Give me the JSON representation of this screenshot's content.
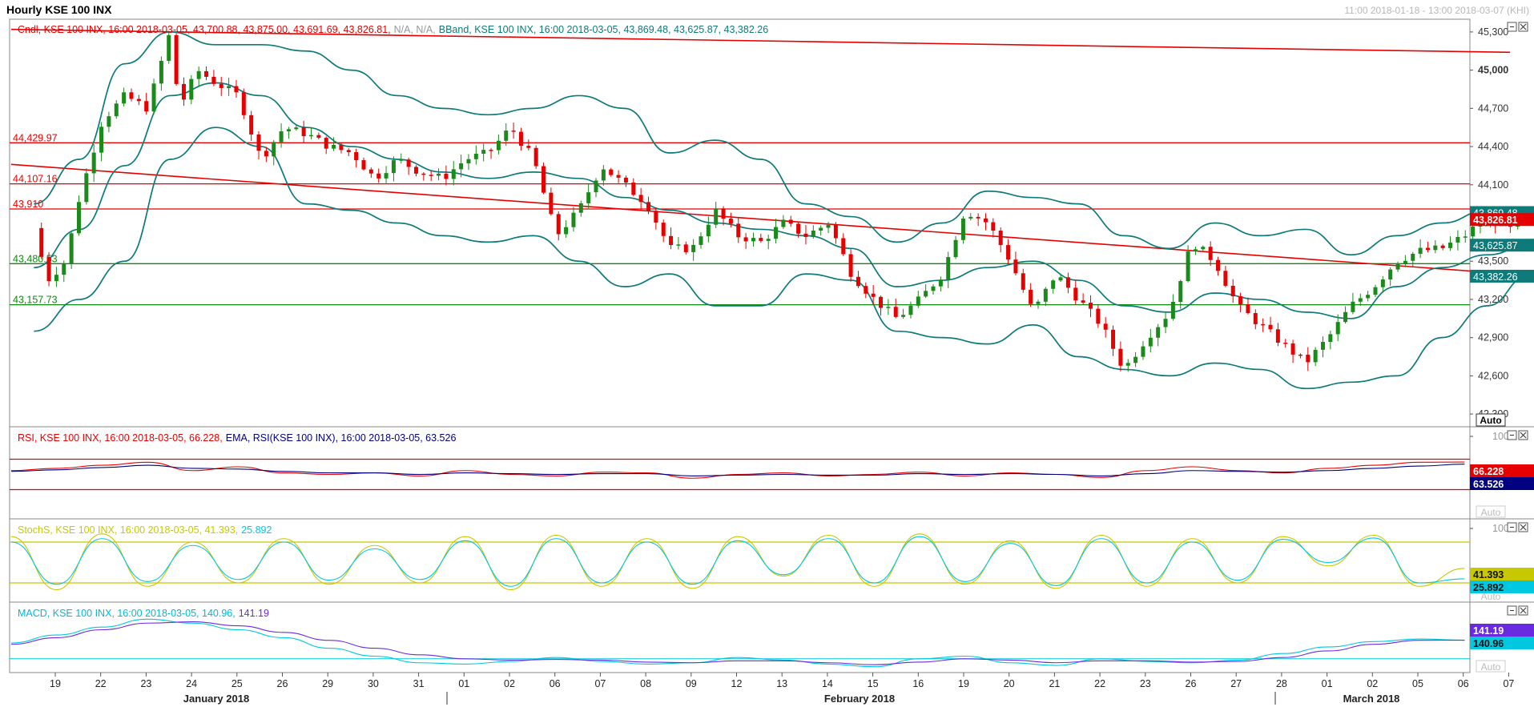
{
  "header": {
    "title": "Hourly KSE 100 INX",
    "range": "11:00 2018-01-18 - 13:00 2018-03-07 (KHI)"
  },
  "panels": {
    "price": {
      "legend_a": "Cndl, KSE 100 INX, 16:00 2018-03-05, 43,700.88, 43,875.00, 43,691.69, 43,826.81,",
      "legend_b": "N/A, N/A,",
      "legend_c": "BBand, KSE 100 INX, 16:00 2018-03-05, 43,869.48, 43,625.87, 43,382.26"
    },
    "rsi": {
      "legend_a": "RSI, KSE 100 INX, 16:00 2018-03-05, 66.228,",
      "legend_b": "EMA, RSI(KSE 100 INX), 16:00 2018-03-05, 63.526"
    },
    "stoch": {
      "legend_a": "StochS, KSE 100 INX, 16:00 2018-03-05, 41.393,",
      "legend_b": "25.892"
    },
    "macd": {
      "legend_a": "MACD, KSE 100 INX, 16:00 2018-03-05, 140.96,",
      "legend_b": "141.19"
    }
  },
  "auto_label": "Auto",
  "colors": {
    "up": "#1a8a1a",
    "down": "#e60000",
    "bband": "#0e7a7a",
    "hline_red": "#e60000",
    "hline_green": "#118811",
    "rsi": "#e60000",
    "rsi_ema": "#000080",
    "stoch_k": "#c8c800",
    "stoch_d": "#00c8e0",
    "macd": "#00c8e0",
    "macd_signal": "#6a2be0"
  },
  "chart_data": [
    {
      "type": "candlestick",
      "title": "Hourly KSE 100 INX",
      "ylim": [
        42200,
        45400
      ],
      "y_ticks": [
        "45,300",
        "45,000",
        "44,700",
        "44,400",
        "44,100",
        "43,800",
        "43,500",
        "43,200",
        "42,900",
        "42,600",
        "42,300"
      ],
      "y_ticks_bold": [
        "45,000"
      ],
      "x_days": [
        "19",
        "22",
        "23",
        "24",
        "25",
        "26",
        "29",
        "30",
        "31",
        "01",
        "02",
        "06",
        "07",
        "08",
        "09",
        "12",
        "13",
        "14",
        "15",
        "16",
        "19",
        "20",
        "21",
        "22",
        "23",
        "26",
        "27",
        "28",
        "01",
        "02",
        "05",
        "06",
        "07"
      ],
      "month_labels": [
        "January 2018",
        "February 2018",
        "March 2018"
      ],
      "horizontal_levels": [
        {
          "label": "44,429.97",
          "value": 44429.97,
          "color": "red"
        },
        {
          "label": "44,107.16",
          "value": 44107.16,
          "color": "red"
        },
        {
          "label": "43,910",
          "value": 43910,
          "color": "red"
        },
        {
          "label": "43,480.53",
          "value": 43480.53,
          "color": "green"
        },
        {
          "label": "43,157.73",
          "value": 43157.73,
          "color": "green"
        }
      ],
      "trendlines": [
        {
          "from": [
            0,
            44260
          ],
          "to": [
            33,
            43400
          ]
        },
        {
          "from": [
            0,
            45320
          ],
          "to": [
            33,
            45140
          ]
        }
      ],
      "value_tags": [
        {
          "text": "43,869.48",
          "value": 43869.48,
          "color": "teal"
        },
        {
          "text": "43,826.81",
          "value": 43826.81,
          "color": "red"
        },
        {
          "text": "43,625.87",
          "value": 43625.87,
          "color": "teal"
        },
        {
          "text": "43,382.26",
          "value": 43382.26,
          "color": "teal"
        }
      ],
      "close_path": [
        [
          0,
          43760
        ],
        [
          0.3,
          43350
        ],
        [
          0.7,
          43500
        ],
        [
          1.0,
          44000
        ],
        [
          1.5,
          44600
        ],
        [
          2.0,
          44800
        ],
        [
          2.5,
          44700
        ],
        [
          3.0,
          45300
        ],
        [
          3.2,
          44700
        ],
        [
          3.6,
          45000
        ],
        [
          4.0,
          44900
        ],
        [
          4.5,
          44800
        ],
        [
          5.0,
          44300
        ],
        [
          5.5,
          44550
        ],
        [
          6.0,
          44500
        ],
        [
          6.5,
          44400
        ],
        [
          7.0,
          44350
        ],
        [
          7.5,
          44150
        ],
        [
          8.0,
          44300
        ],
        [
          8.5,
          44200
        ],
        [
          9.0,
          44150
        ],
        [
          9.5,
          44300
        ],
        [
          10.0,
          44350
        ],
        [
          10.5,
          44550
        ],
        [
          11.0,
          44300
        ],
        [
          11.5,
          43700
        ],
        [
          12.0,
          43900
        ],
        [
          12.5,
          44250
        ],
        [
          13.0,
          44100
        ],
        [
          13.5,
          43950
        ],
        [
          14.0,
          43600
        ],
        [
          14.5,
          43600
        ],
        [
          15.0,
          43900
        ],
        [
          15.5,
          43700
        ],
        [
          16.0,
          43650
        ],
        [
          16.5,
          43800
        ],
        [
          17.0,
          43700
        ],
        [
          17.5,
          43800
        ],
        [
          18.0,
          43400
        ],
        [
          18.5,
          43200
        ],
        [
          19.0,
          43050
        ],
        [
          19.5,
          43200
        ],
        [
          20.0,
          43400
        ],
        [
          20.5,
          43900
        ],
        [
          21.0,
          43800
        ],
        [
          21.5,
          43500
        ],
        [
          22.0,
          43100
        ],
        [
          22.5,
          43400
        ],
        [
          23.0,
          43200
        ],
        [
          23.5,
          43000
        ],
        [
          24.0,
          42650
        ],
        [
          24.5,
          42900
        ],
        [
          25.0,
          43100
        ],
        [
          25.5,
          43650
        ],
        [
          26.0,
          43500
        ],
        [
          26.5,
          43150
        ],
        [
          27.0,
          43000
        ],
        [
          27.5,
          42850
        ],
        [
          28.0,
          42700
        ],
        [
          28.5,
          42900
        ],
        [
          29.0,
          43150
        ],
        [
          29.5,
          43300
        ],
        [
          30.0,
          43500
        ],
        [
          30.5,
          43580
        ],
        [
          31.0,
          43600
        ],
        [
          31.5,
          43700
        ],
        [
          32.0,
          43850
        ],
        [
          32.5,
          43750
        ],
        [
          32.9,
          43826
        ]
      ],
      "bband_upper": [
        [
          0,
          43950
        ],
        [
          1,
          44300
        ],
        [
          2,
          45050
        ],
        [
          3,
          45300
        ],
        [
          4,
          45200
        ],
        [
          5,
          45200
        ],
        [
          6,
          45150
        ],
        [
          7,
          45000
        ],
        [
          8,
          44800
        ],
        [
          9,
          44700
        ],
        [
          10,
          44650
        ],
        [
          11,
          44700
        ],
        [
          12,
          44800
        ],
        [
          13,
          44700
        ],
        [
          14,
          44350
        ],
        [
          15,
          44450
        ],
        [
          16,
          44300
        ],
        [
          17,
          43950
        ],
        [
          18,
          43850
        ],
        [
          19,
          43650
        ],
        [
          20,
          43800
        ],
        [
          21,
          44050
        ],
        [
          22,
          44000
        ],
        [
          23,
          43950
        ],
        [
          24,
          43700
        ],
        [
          25,
          43600
        ],
        [
          26,
          43800
        ],
        [
          27,
          43700
        ],
        [
          28,
          43750
        ],
        [
          29,
          43550
        ],
        [
          30,
          43700
        ],
        [
          31,
          43800
        ],
        [
          32,
          43900
        ],
        [
          32.9,
          43869
        ]
      ],
      "bband_mid": [
        [
          0,
          43450
        ],
        [
          1,
          43750
        ],
        [
          2,
          44250
        ],
        [
          3,
          44800
        ],
        [
          4,
          44900
        ],
        [
          5,
          44800
        ],
        [
          6,
          44550
        ],
        [
          7,
          44400
        ],
        [
          8,
          44300
        ],
        [
          9,
          44200
        ],
        [
          10,
          44150
        ],
        [
          11,
          44200
        ],
        [
          12,
          44150
        ],
        [
          13,
          44000
        ],
        [
          14,
          43900
        ],
        [
          15,
          43800
        ],
        [
          16,
          43750
        ],
        [
          17,
          43700
        ],
        [
          18,
          43600
        ],
        [
          19,
          43300
        ],
        [
          20,
          43350
        ],
        [
          21,
          43450
        ],
        [
          22,
          43500
        ],
        [
          23,
          43350
        ],
        [
          24,
          43150
        ],
        [
          25,
          43100
        ],
        [
          26,
          43250
        ],
        [
          27,
          43200
        ],
        [
          28,
          43100
        ],
        [
          29,
          43050
        ],
        [
          30,
          43300
        ],
        [
          31,
          43450
        ],
        [
          32,
          43550
        ],
        [
          32.9,
          43625
        ]
      ],
      "bband_lower": [
        [
          0,
          42950
        ],
        [
          1,
          43200
        ],
        [
          2,
          43500
        ],
        [
          3,
          44300
        ],
        [
          4,
          44550
        ],
        [
          5,
          44400
        ],
        [
          6,
          43950
        ],
        [
          7,
          43900
        ],
        [
          8,
          43800
        ],
        [
          9,
          43700
        ],
        [
          10,
          43650
        ],
        [
          11,
          43700
        ],
        [
          12,
          43500
        ],
        [
          13,
          43300
        ],
        [
          14,
          43400
        ],
        [
          15,
          43150
        ],
        [
          16,
          43150
        ],
        [
          17,
          43400
        ],
        [
          18,
          43350
        ],
        [
          19,
          42950
        ],
        [
          20,
          42900
        ],
        [
          21,
          42850
        ],
        [
          22,
          43000
        ],
        [
          23,
          42750
        ],
        [
          24,
          42650
        ],
        [
          25,
          42600
        ],
        [
          26,
          42700
        ],
        [
          27,
          42650
        ],
        [
          28,
          42500
        ],
        [
          29,
          42550
        ],
        [
          30,
          42600
        ],
        [
          31,
          42900
        ],
        [
          32,
          43150
        ],
        [
          32.9,
          43382
        ]
      ]
    },
    {
      "type": "line",
      "title": "RSI",
      "ylim": [
        0,
        100
      ],
      "y_ticks": [
        "100"
      ],
      "levels": [
        70,
        30
      ],
      "series": [
        {
          "name": "RSI",
          "values": [
            55,
            58,
            62,
            66,
            55,
            60,
            52,
            50,
            52,
            48,
            55,
            50,
            48,
            53,
            52,
            45,
            50,
            52,
            48,
            50,
            53,
            48,
            52,
            50,
            46,
            55,
            60,
            55,
            52,
            58,
            62,
            66,
            66.2
          ]
        },
        {
          "name": "EMA",
          "values": [
            54,
            56,
            59,
            62,
            58,
            57,
            54,
            52,
            52,
            50,
            52,
            51,
            50,
            51,
            51,
            48,
            49,
            50,
            49,
            49,
            51,
            50,
            51,
            50,
            48,
            51,
            55,
            54,
            53,
            55,
            58,
            61,
            63.5
          ]
        }
      ],
      "tags": [
        "66.228",
        "63.526"
      ]
    },
    {
      "type": "line",
      "title": "StochS",
      "ylim": [
        0,
        100
      ],
      "y_ticks": [
        "100"
      ],
      "levels": [
        80,
        20
      ],
      "series": [
        {
          "name": "%K",
          "values": [
            88,
            10,
            92,
            15,
            80,
            20,
            85,
            18,
            75,
            20,
            88,
            10,
            90,
            15,
            85,
            12,
            88,
            30,
            90,
            15,
            92,
            18,
            82,
            12,
            90,
            15,
            85,
            20,
            88,
            45,
            90,
            15,
            41.4
          ]
        },
        {
          "name": "%D",
          "values": [
            80,
            18,
            85,
            22,
            75,
            25,
            80,
            24,
            70,
            25,
            82,
            15,
            85,
            20,
            80,
            18,
            82,
            32,
            85,
            20,
            88,
            22,
            78,
            16,
            85,
            20,
            80,
            24,
            84,
            50,
            86,
            20,
            25.9
          ]
        }
      ],
      "tags": [
        "41.393",
        "25.892"
      ]
    },
    {
      "type": "line",
      "title": "MACD",
      "y_ticks": [],
      "series": [
        {
          "name": "MACD",
          "values": [
            120,
            180,
            240,
            300,
            270,
            220,
            160,
            80,
            20,
            -30,
            -40,
            -20,
            10,
            -20,
            -40,
            -30,
            10,
            -10,
            -40,
            -60,
            0,
            20,
            -30,
            -50,
            0,
            -20,
            -30,
            -10,
            40,
            90,
            130,
            150,
            141
          ]
        },
        {
          "name": "Signal",
          "values": [
            110,
            160,
            220,
            270,
            280,
            250,
            200,
            140,
            80,
            30,
            0,
            -10,
            -5,
            -10,
            -25,
            -30,
            -15,
            -15,
            -30,
            -45,
            -25,
            0,
            -10,
            -30,
            -15,
            -15,
            -25,
            -20,
            10,
            60,
            110,
            140,
            141
          ]
        }
      ],
      "tags": [
        "141.19",
        "140.96"
      ]
    }
  ]
}
